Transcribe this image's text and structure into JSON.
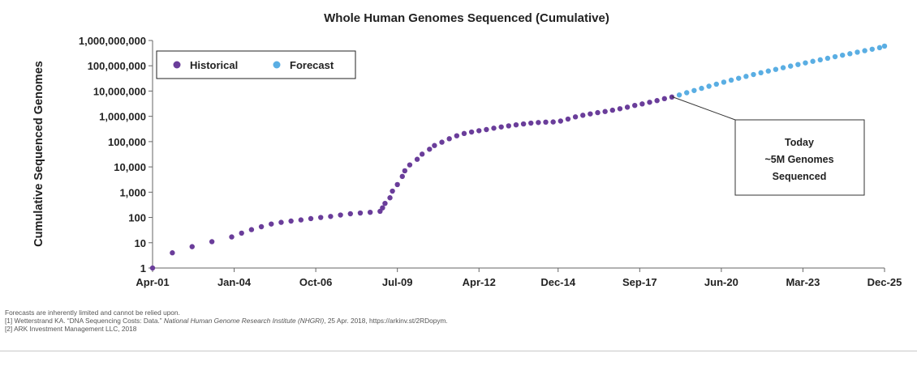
{
  "chart_data": {
    "type": "scatter",
    "title": "Whole Human Genomes Sequenced (Cumulative)",
    "ylabel": "Cumulative Sequenced Genomes",
    "xlabel": "",
    "y_scale": "log",
    "ylim": [
      1,
      1000000000
    ],
    "xlim": [
      "2001-04",
      "2025-12"
    ],
    "grid": false,
    "x_ticks": [
      {
        "label": "Apr-01",
        "date": "2001-04"
      },
      {
        "label": "Jan-04",
        "date": "2004-01"
      },
      {
        "label": "Oct-06",
        "date": "2006-10"
      },
      {
        "label": "Jul-09",
        "date": "2009-07"
      },
      {
        "label": "Apr-12",
        "date": "2012-04"
      },
      {
        "label": "Dec-14",
        "date": "2014-12"
      },
      {
        "label": "Sep-17",
        "date": "2017-09"
      },
      {
        "label": "Jun-20",
        "date": "2020-06"
      },
      {
        "label": "Mar-23",
        "date": "2023-03"
      },
      {
        "label": "Dec-25",
        "date": "2025-12"
      }
    ],
    "y_ticks": [
      {
        "label": "1",
        "value": 1
      },
      {
        "label": "10",
        "value": 10
      },
      {
        "label": "100",
        "value": 100
      },
      {
        "label": "1,000",
        "value": 1000
      },
      {
        "label": "10,000",
        "value": 10000
      },
      {
        "label": "100,000",
        "value": 100000
      },
      {
        "label": "1,000,000",
        "value": 1000000
      },
      {
        "label": "10,000,000",
        "value": 10000000
      },
      {
        "label": "100,000,000",
        "value": 100000000
      },
      {
        "label": "1,000,000,000",
        "value": 1000000000
      }
    ],
    "legend": {
      "position": "top-left",
      "boxed": true
    },
    "series": [
      {
        "name": "Historical",
        "color": "#6a3d9a",
        "points": [
          [
            "2001-04",
            1
          ],
          [
            "2001-12",
            4
          ],
          [
            "2002-08",
            7
          ],
          [
            "2003-04",
            11
          ],
          [
            "2003-12",
            17
          ],
          [
            "2004-04",
            24
          ],
          [
            "2004-08",
            33
          ],
          [
            "2004-12",
            43
          ],
          [
            "2005-04",
            55
          ],
          [
            "2005-08",
            64
          ],
          [
            "2005-12",
            72
          ],
          [
            "2006-04",
            80
          ],
          [
            "2006-08",
            90
          ],
          [
            "2006-12",
            100
          ],
          [
            "2007-04",
            110
          ],
          [
            "2007-08",
            125
          ],
          [
            "2007-12",
            140
          ],
          [
            "2008-04",
            150
          ],
          [
            "2008-08",
            160
          ],
          [
            "2008-12",
            175
          ],
          [
            "2009-01",
            240
          ],
          [
            "2009-02",
            360
          ],
          [
            "2009-04",
            600
          ],
          [
            "2009-05",
            1100
          ],
          [
            "2009-07",
            2000
          ],
          [
            "2009-09",
            4200
          ],
          [
            "2009-10",
            7000
          ],
          [
            "2009-12",
            12000
          ],
          [
            "2010-03",
            20000
          ],
          [
            "2010-05",
            32000
          ],
          [
            "2010-08",
            50000
          ],
          [
            "2010-10",
            70000
          ],
          [
            "2011-01",
            95000
          ],
          [
            "2011-04",
            130000
          ],
          [
            "2011-07",
            170000
          ],
          [
            "2011-10",
            210000
          ],
          [
            "2012-01",
            240000
          ],
          [
            "2012-04",
            270000
          ],
          [
            "2012-07",
            300000
          ],
          [
            "2012-10",
            340000
          ],
          [
            "2013-01",
            380000
          ],
          [
            "2013-04",
            420000
          ],
          [
            "2013-07",
            460000
          ],
          [
            "2013-10",
            500000
          ],
          [
            "2014-01",
            540000
          ],
          [
            "2014-04",
            570000
          ],
          [
            "2014-07",
            590000
          ],
          [
            "2014-10",
            600000
          ],
          [
            "2015-01",
            650000
          ],
          [
            "2015-04",
            780000
          ],
          [
            "2015-07",
            950000
          ],
          [
            "2015-10",
            1100000
          ],
          [
            "2016-01",
            1250000
          ],
          [
            "2016-04",
            1400000
          ],
          [
            "2016-07",
            1550000
          ],
          [
            "2016-10",
            1750000
          ],
          [
            "2017-01",
            2000000
          ],
          [
            "2017-04",
            2300000
          ],
          [
            "2017-07",
            2700000
          ],
          [
            "2017-10",
            3100000
          ],
          [
            "2018-01",
            3600000
          ],
          [
            "2018-04",
            4200000
          ],
          [
            "2018-07",
            5000000
          ],
          [
            "2018-10",
            5800000
          ]
        ]
      },
      {
        "name": "Forecast",
        "color": "#5aaee3",
        "points": [
          [
            "2019-01",
            7000000
          ],
          [
            "2019-04",
            8600000
          ],
          [
            "2019-07",
            10500000
          ],
          [
            "2019-10",
            12800000
          ],
          [
            "2020-01",
            15500000
          ],
          [
            "2020-04",
            18700000
          ],
          [
            "2020-07",
            22500000
          ],
          [
            "2020-10",
            27000000
          ],
          [
            "2021-01",
            32000000
          ],
          [
            "2021-04",
            38000000
          ],
          [
            "2021-07",
            45000000
          ],
          [
            "2021-10",
            53000000
          ],
          [
            "2022-01",
            62000000
          ],
          [
            "2022-04",
            72000000
          ],
          [
            "2022-07",
            84000000
          ],
          [
            "2022-10",
            97000000
          ],
          [
            "2023-01",
            112000000
          ],
          [
            "2023-04",
            130000000
          ],
          [
            "2023-07",
            150000000
          ],
          [
            "2023-10",
            172000000
          ],
          [
            "2024-01",
            198000000
          ],
          [
            "2024-04",
            228000000
          ],
          [
            "2024-07",
            262000000
          ],
          [
            "2024-10",
            300000000
          ],
          [
            "2025-01",
            345000000
          ],
          [
            "2025-04",
            395000000
          ],
          [
            "2025-07",
            452000000
          ],
          [
            "2025-10",
            520000000
          ],
          [
            "2025-12",
            600000000
          ]
        ]
      }
    ],
    "annotations": [
      {
        "lines": [
          "Today",
          "~5M Genomes",
          "Sequenced"
        ],
        "points_to": [
          "2018-10",
          6000000
        ]
      }
    ]
  },
  "footnotes": {
    "line1": "Forecasts are inherently limited and cannot be relied upon.",
    "line2_prefix": "[1] Wetterstrand KA. “DNA Sequencing Costs: Data.” ",
    "line2_italic": "National Human Genome Research Institute (NHGRI)",
    "line2_suffix": ", 25 Apr. 2018, https://arkinv.st/2RDopym.",
    "line3": "[2] ARK Investment Management LLC, 2018"
  }
}
